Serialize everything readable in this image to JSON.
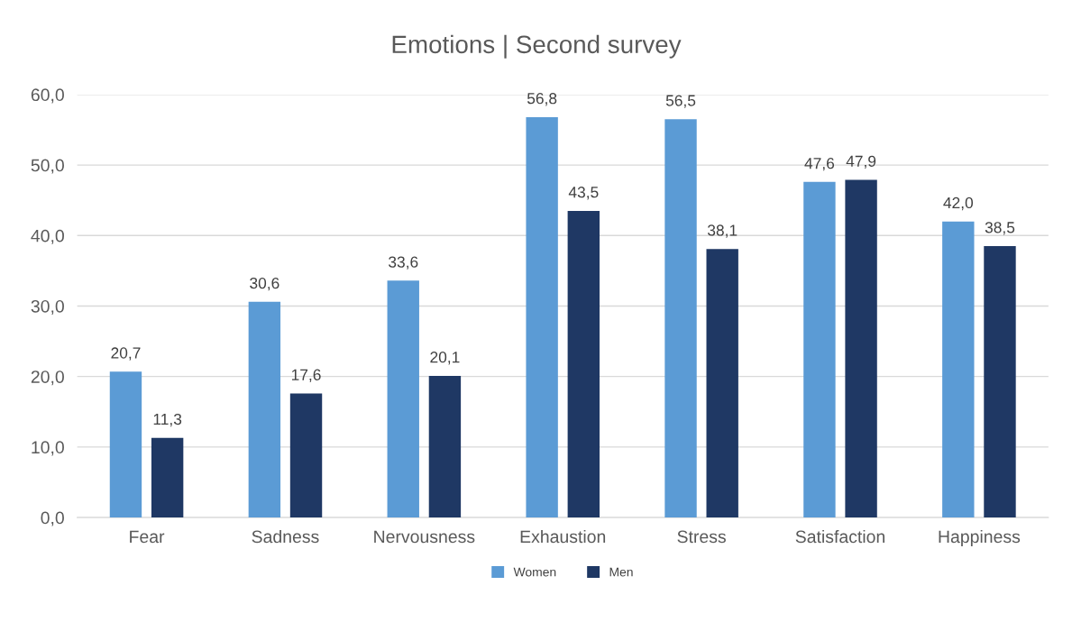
{
  "chart_data": {
    "type": "bar",
    "title": "Emotions | Second survey",
    "categories": [
      "Fear",
      "Sadness",
      "Nervousness",
      "Exhaustion",
      "Stress",
      "Satisfaction",
      "Happiness"
    ],
    "series": [
      {
        "name": "Women",
        "color": "#5b9bd5",
        "values": [
          20.7,
          30.6,
          33.6,
          56.8,
          56.5,
          47.6,
          42.0
        ],
        "value_labels": [
          "20,7",
          "30,6",
          "33,6",
          "56,8",
          "56,5",
          "47,6",
          "42,0"
        ]
      },
      {
        "name": "Men",
        "color": "#1f3864",
        "values": [
          11.3,
          17.6,
          20.1,
          43.5,
          38.1,
          47.9,
          38.5
        ],
        "value_labels": [
          "11,3",
          "17,6",
          "20,1",
          "43,5",
          "38,1",
          "47,9",
          "38,5"
        ]
      }
    ],
    "ylim": [
      0,
      60
    ],
    "yticks": [
      {
        "value": 0,
        "label": "0,0"
      },
      {
        "value": 10,
        "label": "10,0"
      },
      {
        "value": 20,
        "label": "20,0"
      },
      {
        "value": 30,
        "label": "30,0"
      },
      {
        "value": 40,
        "label": "40,0"
      },
      {
        "value": 50,
        "label": "50,0"
      },
      {
        "value": 60,
        "label": "60,0"
      }
    ],
    "grid": "y",
    "legend": "bottom"
  }
}
